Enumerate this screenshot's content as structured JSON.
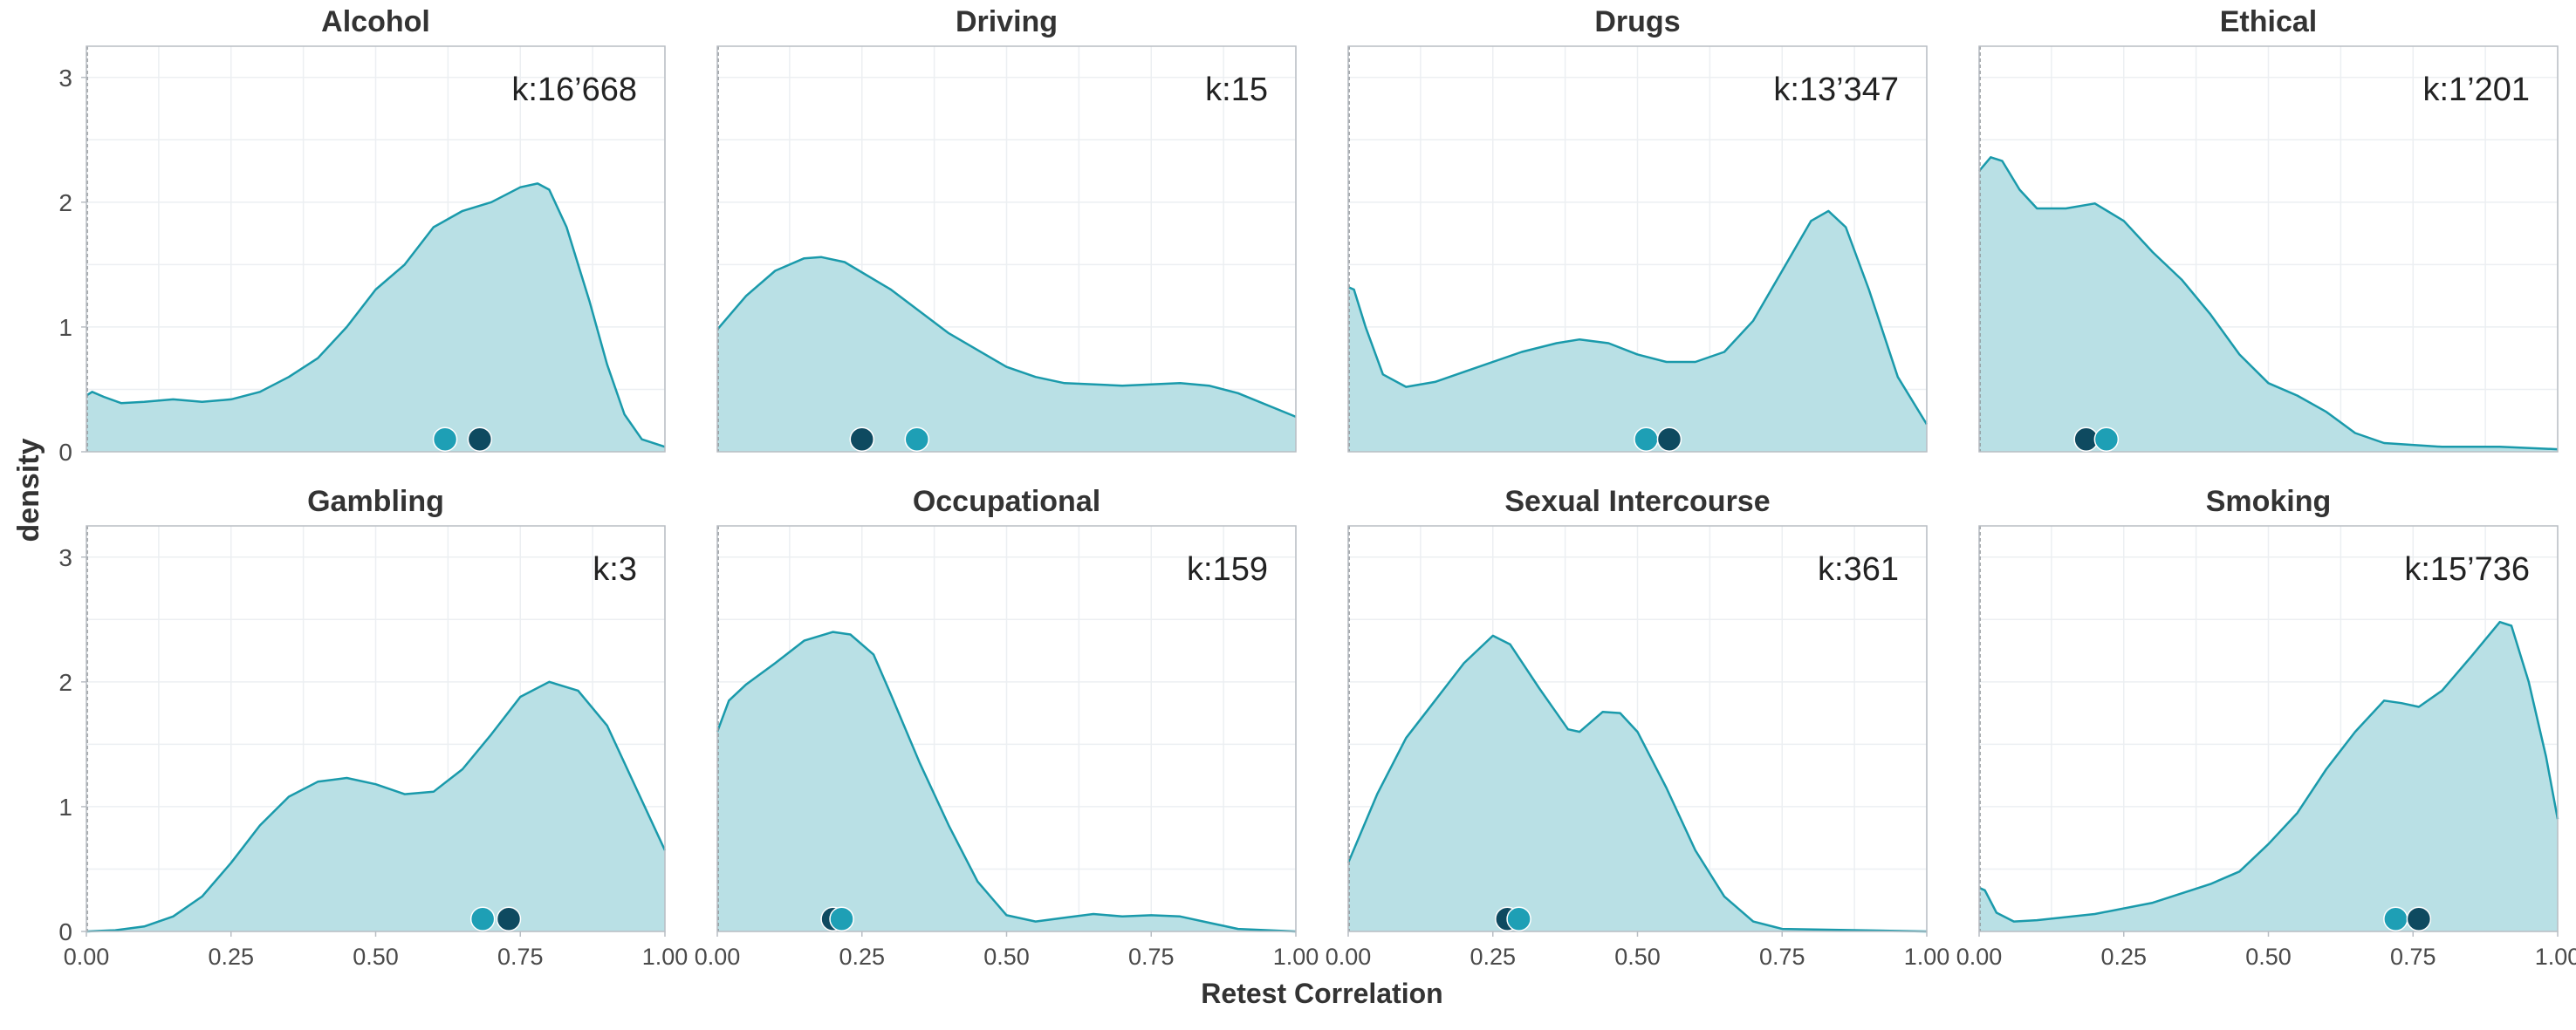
{
  "chart_data": {
    "type": "area",
    "facet_type": "density",
    "xlabel": "Retest Correlation",
    "ylabel": "density",
    "xlim": [
      0,
      1
    ],
    "ylim": [
      0,
      3.25
    ],
    "x_ticks": [
      0,
      0.25,
      0.5,
      0.75,
      1
    ],
    "x_tick_labels": [
      "0.00",
      "0.25",
      "0.50",
      "0.75",
      "1.00"
    ],
    "y_ticks": [
      0,
      1,
      2,
      3
    ],
    "y_tick_labels": [
      "0",
      "1",
      "2",
      "3"
    ],
    "grid": true,
    "colors": {
      "fill": "#b9e0e5",
      "line": "#1a9aab",
      "point_light": "#1e9fb5",
      "point_dark": "#0e4a60",
      "panel_border": "#b9bec4",
      "grid": "#eceff2",
      "text": "#333333"
    },
    "panels": [
      {
        "title": "Alcohol",
        "k_label": "k:16’668",
        "curve": [
          [
            0,
            0.45
          ],
          [
            0.01,
            0.48
          ],
          [
            0.03,
            0.44
          ],
          [
            0.06,
            0.39
          ],
          [
            0.1,
            0.4
          ],
          [
            0.15,
            0.42
          ],
          [
            0.2,
            0.4
          ],
          [
            0.25,
            0.42
          ],
          [
            0.3,
            0.48
          ],
          [
            0.35,
            0.6
          ],
          [
            0.4,
            0.75
          ],
          [
            0.45,
            1.0
          ],
          [
            0.5,
            1.3
          ],
          [
            0.55,
            1.5
          ],
          [
            0.6,
            1.8
          ],
          [
            0.65,
            1.93
          ],
          [
            0.7,
            2.0
          ],
          [
            0.75,
            2.12
          ],
          [
            0.78,
            2.15
          ],
          [
            0.8,
            2.1
          ],
          [
            0.83,
            1.8
          ],
          [
            0.87,
            1.2
          ],
          [
            0.9,
            0.7
          ],
          [
            0.93,
            0.3
          ],
          [
            0.96,
            0.1
          ],
          [
            1.0,
            0.04
          ]
        ],
        "points": [
          {
            "x": 0.62,
            "shade": "light"
          },
          {
            "x": 0.68,
            "shade": "dark"
          }
        ]
      },
      {
        "title": "Driving",
        "k_label": "k:15",
        "curve": [
          [
            0,
            0.98
          ],
          [
            0.05,
            1.25
          ],
          [
            0.1,
            1.45
          ],
          [
            0.15,
            1.55
          ],
          [
            0.18,
            1.56
          ],
          [
            0.22,
            1.52
          ],
          [
            0.3,
            1.3
          ],
          [
            0.4,
            0.95
          ],
          [
            0.5,
            0.68
          ],
          [
            0.55,
            0.6
          ],
          [
            0.6,
            0.55
          ],
          [
            0.7,
            0.53
          ],
          [
            0.8,
            0.55
          ],
          [
            0.85,
            0.53
          ],
          [
            0.9,
            0.47
          ],
          [
            1.0,
            0.28
          ]
        ],
        "points": [
          {
            "x": 0.25,
            "shade": "dark"
          },
          {
            "x": 0.345,
            "shade": "light"
          }
        ]
      },
      {
        "title": "Drugs",
        "k_label": "k:13’347",
        "curve": [
          [
            0,
            1.32
          ],
          [
            0.01,
            1.3
          ],
          [
            0.03,
            1.0
          ],
          [
            0.06,
            0.62
          ],
          [
            0.1,
            0.52
          ],
          [
            0.15,
            0.56
          ],
          [
            0.2,
            0.64
          ],
          [
            0.3,
            0.8
          ],
          [
            0.36,
            0.87
          ],
          [
            0.4,
            0.9
          ],
          [
            0.45,
            0.87
          ],
          [
            0.5,
            0.78
          ],
          [
            0.55,
            0.72
          ],
          [
            0.6,
            0.72
          ],
          [
            0.65,
            0.8
          ],
          [
            0.7,
            1.05
          ],
          [
            0.75,
            1.45
          ],
          [
            0.8,
            1.85
          ],
          [
            0.83,
            1.93
          ],
          [
            0.86,
            1.8
          ],
          [
            0.9,
            1.3
          ],
          [
            0.95,
            0.6
          ],
          [
            1.0,
            0.22
          ]
        ],
        "points": [
          {
            "x": 0.515,
            "shade": "light"
          },
          {
            "x": 0.555,
            "shade": "dark"
          }
        ]
      },
      {
        "title": "Ethical",
        "k_label": "k:1’201",
        "curve": [
          [
            0,
            2.25
          ],
          [
            0.02,
            2.36
          ],
          [
            0.04,
            2.33
          ],
          [
            0.07,
            2.1
          ],
          [
            0.1,
            1.95
          ],
          [
            0.15,
            1.95
          ],
          [
            0.2,
            1.99
          ],
          [
            0.25,
            1.85
          ],
          [
            0.3,
            1.6
          ],
          [
            0.35,
            1.38
          ],
          [
            0.4,
            1.1
          ],
          [
            0.45,
            0.78
          ],
          [
            0.5,
            0.55
          ],
          [
            0.55,
            0.45
          ],
          [
            0.6,
            0.32
          ],
          [
            0.65,
            0.15
          ],
          [
            0.7,
            0.07
          ],
          [
            0.8,
            0.04
          ],
          [
            0.9,
            0.04
          ],
          [
            1.0,
            0.02
          ]
        ],
        "points": [
          {
            "x": 0.185,
            "shade": "dark"
          },
          {
            "x": 0.22,
            "shade": "light"
          }
        ]
      },
      {
        "title": "Gambling",
        "k_label": "k:3",
        "curve": [
          [
            0,
            0.0
          ],
          [
            0.05,
            0.01
          ],
          [
            0.1,
            0.04
          ],
          [
            0.15,
            0.12
          ],
          [
            0.2,
            0.28
          ],
          [
            0.25,
            0.55
          ],
          [
            0.3,
            0.85
          ],
          [
            0.35,
            1.08
          ],
          [
            0.4,
            1.2
          ],
          [
            0.45,
            1.23
          ],
          [
            0.5,
            1.18
          ],
          [
            0.55,
            1.1
          ],
          [
            0.6,
            1.12
          ],
          [
            0.65,
            1.3
          ],
          [
            0.7,
            1.58
          ],
          [
            0.75,
            1.88
          ],
          [
            0.8,
            2.0
          ],
          [
            0.85,
            1.93
          ],
          [
            0.9,
            1.65
          ],
          [
            0.95,
            1.15
          ],
          [
            1.0,
            0.65
          ]
        ],
        "points": [
          {
            "x": 0.685,
            "shade": "light"
          },
          {
            "x": 0.73,
            "shade": "dark"
          }
        ]
      },
      {
        "title": "Occupational",
        "k_label": "k:159",
        "curve": [
          [
            0,
            1.6
          ],
          [
            0.02,
            1.85
          ],
          [
            0.05,
            1.98
          ],
          [
            0.1,
            2.15
          ],
          [
            0.15,
            2.33
          ],
          [
            0.2,
            2.4
          ],
          [
            0.23,
            2.38
          ],
          [
            0.27,
            2.22
          ],
          [
            0.3,
            1.9
          ],
          [
            0.35,
            1.35
          ],
          [
            0.4,
            0.85
          ],
          [
            0.45,
            0.4
          ],
          [
            0.5,
            0.13
          ],
          [
            0.55,
            0.08
          ],
          [
            0.6,
            0.11
          ],
          [
            0.65,
            0.14
          ],
          [
            0.7,
            0.12
          ],
          [
            0.75,
            0.13
          ],
          [
            0.8,
            0.12
          ],
          [
            0.85,
            0.07
          ],
          [
            0.9,
            0.02
          ],
          [
            1.0,
            0.0
          ]
        ],
        "points": [
          {
            "x": 0.2,
            "shade": "dark"
          },
          {
            "x": 0.215,
            "shade": "light"
          }
        ]
      },
      {
        "title": "Sexual Intercourse",
        "k_label": "k:361",
        "curve": [
          [
            0,
            0.55
          ],
          [
            0.05,
            1.1
          ],
          [
            0.1,
            1.55
          ],
          [
            0.15,
            1.85
          ],
          [
            0.2,
            2.15
          ],
          [
            0.25,
            2.37
          ],
          [
            0.28,
            2.3
          ],
          [
            0.33,
            1.95
          ],
          [
            0.38,
            1.62
          ],
          [
            0.4,
            1.6
          ],
          [
            0.44,
            1.76
          ],
          [
            0.47,
            1.75
          ],
          [
            0.5,
            1.6
          ],
          [
            0.55,
            1.15
          ],
          [
            0.6,
            0.65
          ],
          [
            0.65,
            0.28
          ],
          [
            0.7,
            0.08
          ],
          [
            0.75,
            0.02
          ],
          [
            1.0,
            0.0
          ]
        ],
        "points": [
          {
            "x": 0.275,
            "shade": "dark"
          },
          {
            "x": 0.295,
            "shade": "light"
          }
        ]
      },
      {
        "title": "Smoking",
        "k_label": "k:15’736",
        "curve": [
          [
            0,
            0.35
          ],
          [
            0.01,
            0.33
          ],
          [
            0.03,
            0.15
          ],
          [
            0.06,
            0.08
          ],
          [
            0.1,
            0.09
          ],
          [
            0.2,
            0.14
          ],
          [
            0.3,
            0.23
          ],
          [
            0.4,
            0.38
          ],
          [
            0.45,
            0.48
          ],
          [
            0.5,
            0.7
          ],
          [
            0.55,
            0.95
          ],
          [
            0.6,
            1.3
          ],
          [
            0.65,
            1.6
          ],
          [
            0.7,
            1.85
          ],
          [
            0.73,
            1.83
          ],
          [
            0.76,
            1.8
          ],
          [
            0.8,
            1.93
          ],
          [
            0.85,
            2.2
          ],
          [
            0.9,
            2.48
          ],
          [
            0.92,
            2.45
          ],
          [
            0.95,
            2.0
          ],
          [
            0.98,
            1.4
          ],
          [
            1.0,
            0.9
          ]
        ],
        "points": [
          {
            "x": 0.72,
            "shade": "light"
          },
          {
            "x": 0.76,
            "shade": "dark"
          }
        ]
      }
    ]
  }
}
